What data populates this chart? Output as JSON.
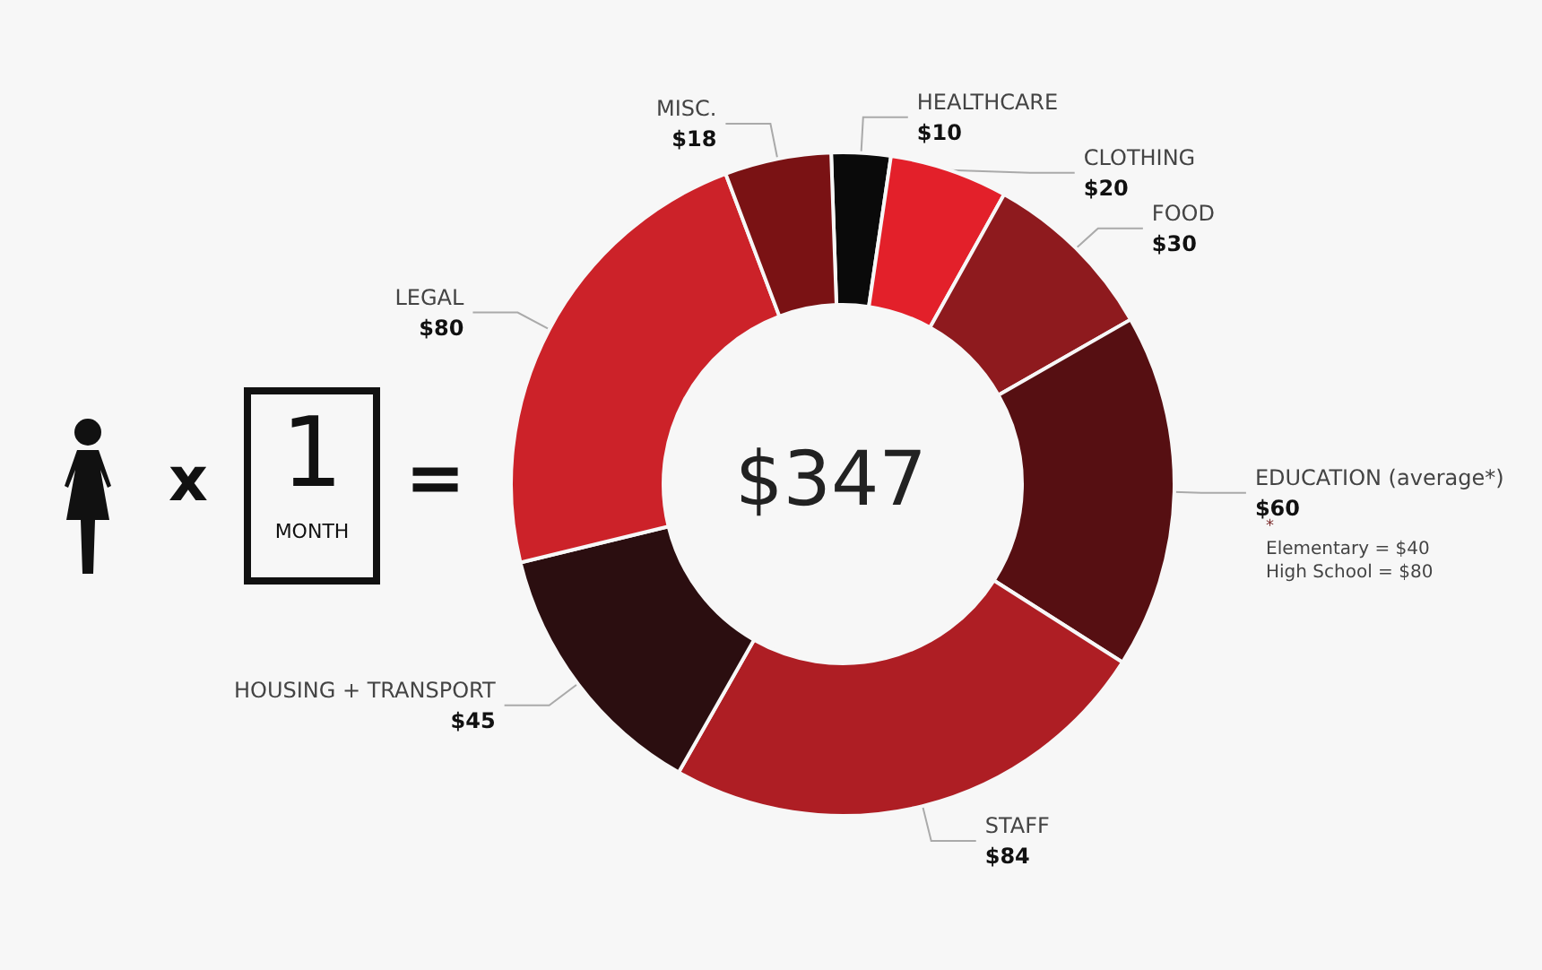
{
  "chart_data": {
    "type": "donut",
    "title": "$347",
    "categories": [
      "HEALTHCARE",
      "CLOTHING",
      "FOOD",
      "EDUCATION (average*)",
      "STAFF",
      "HOUSING + TRANSPORT",
      "LEGAL",
      "MISC."
    ],
    "values": [
      10,
      20,
      30,
      60,
      84,
      45,
      80,
      18
    ],
    "value_labels": [
      "$10",
      "$20",
      "$30",
      "$60",
      "$84",
      "$45",
      "$80",
      "$18"
    ],
    "colors": [
      "#0a0a0a",
      "#e3202a",
      "#8e1a1e",
      "#560f12",
      "#ae1e24",
      "#2b0e10",
      "#cc2229",
      "#7a1214"
    ],
    "annotations": [
      "x",
      "1",
      "MONTH",
      "=",
      "*",
      "Elementary = $40",
      "High School = $80"
    ],
    "legend": false
  }
}
